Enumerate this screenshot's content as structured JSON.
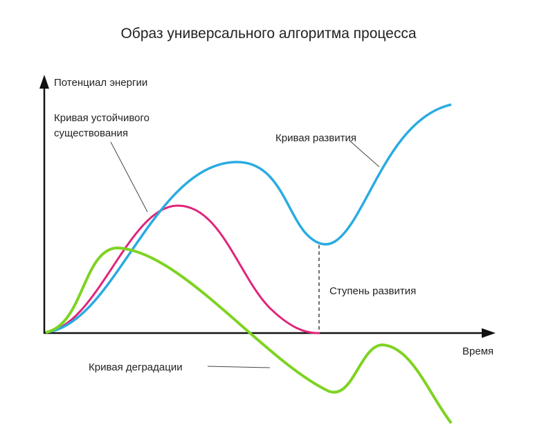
{
  "title": "Образ универсального алгоритма процесса",
  "axes": {
    "y_label": "Потенциал энергии",
    "x_label": "Время",
    "color": "#111111"
  },
  "curves": {
    "development": {
      "label": "Кривая развития",
      "color": "#29abe2"
    },
    "stable": {
      "label_line1": "Кривая устойчивого",
      "label_line2": "существования",
      "color": "#e0247a"
    },
    "degradation": {
      "label": "Кривая деградации",
      "color": "#7ed321"
    }
  },
  "annotations": {
    "step": "Ступень развития"
  }
}
